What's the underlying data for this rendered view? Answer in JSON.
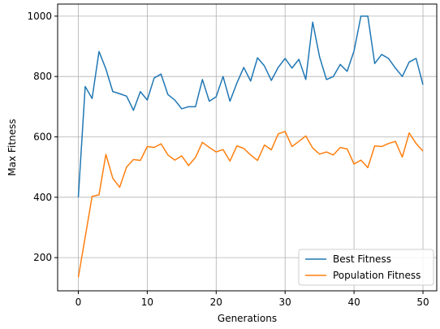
{
  "chart_data": {
    "type": "line",
    "xlabel": "Generations",
    "ylabel": "Max Fitness",
    "xlim": [
      -3,
      52
    ],
    "ylim": [
      90,
      1040
    ],
    "x_ticks": [
      0,
      10,
      20,
      30,
      40,
      50
    ],
    "y_ticks": [
      200,
      400,
      600,
      800,
      1000
    ],
    "grid": true,
    "legend_position": "bottom-right",
    "x": [
      0,
      1,
      2,
      3,
      4,
      5,
      6,
      7,
      8,
      9,
      10,
      11,
      12,
      13,
      14,
      15,
      16,
      17,
      18,
      19,
      20,
      21,
      22,
      23,
      24,
      25,
      26,
      27,
      28,
      29,
      30,
      31,
      32,
      33,
      34,
      35,
      36,
      37,
      38,
      39,
      40,
      41,
      42,
      43,
      44,
      45,
      46,
      47,
      48,
      49,
      50
    ],
    "series": [
      {
        "name": "Best Fitness",
        "color": "#1f77b4",
        "values": [
          400,
          767,
          727,
          883,
          825,
          750,
          743,
          735,
          688,
          750,
          722,
          795,
          808,
          740,
          722,
          693,
          700,
          700,
          790,
          718,
          733,
          800,
          718,
          778,
          830,
          785,
          862,
          835,
          787,
          830,
          860,
          828,
          857,
          790,
          980,
          865,
          790,
          800,
          840,
          817,
          885,
          1000,
          1000,
          843,
          873,
          860,
          828,
          800,
          848,
          860,
          773
        ]
      },
      {
        "name": "Population Fitness",
        "color": "#ff7f0e",
        "values": [
          135,
          268,
          403,
          408,
          542,
          463,
          433,
          500,
          525,
          522,
          568,
          565,
          577,
          540,
          523,
          537,
          505,
          532,
          582,
          565,
          550,
          558,
          520,
          570,
          562,
          540,
          522,
          573,
          557,
          610,
          618,
          568,
          585,
          603,
          563,
          543,
          550,
          540,
          565,
          560,
          510,
          523,
          498,
          570,
          568,
          578,
          585,
          533,
          613,
          578,
          553
        ]
      }
    ]
  }
}
